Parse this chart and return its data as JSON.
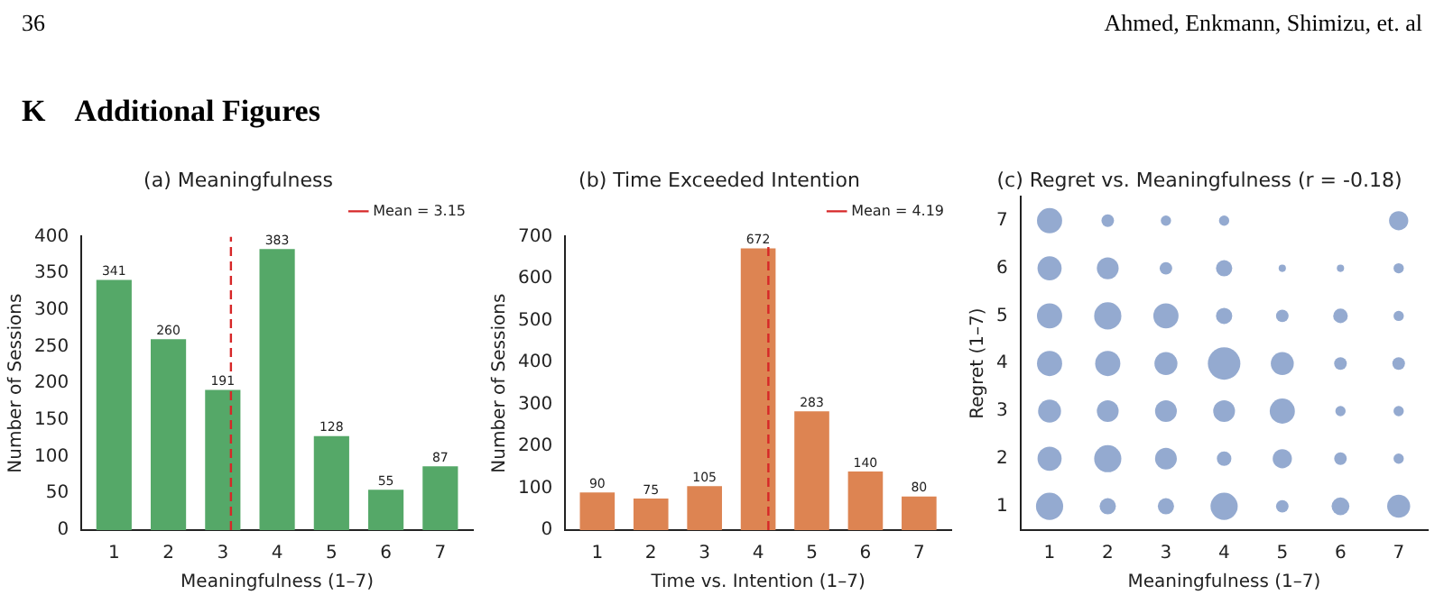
{
  "chart_data": [
    {
      "type": "bar",
      "title": "(a) Meaningfulness",
      "xlabel": "Meaningfulness (1–7)",
      "ylabel": "Number of Sessions",
      "x": [
        1,
        2,
        3,
        4,
        5,
        6,
        7
      ],
      "values": [
        341,
        260,
        191,
        383,
        128,
        55,
        87
      ],
      "color": "#55a868",
      "xlim": [
        0.4,
        7.6
      ],
      "xticks": [
        1,
        2,
        3,
        4,
        5,
        6,
        7
      ],
      "ylim": [
        0,
        400
      ],
      "yticks": [
        0,
        50,
        100,
        150,
        200,
        250,
        300,
        350,
        400
      ],
      "data_labels": true,
      "ref_lines": [
        {
          "axis": "x",
          "value": 3.15,
          "label": "Mean = 3.15",
          "color": "#d62728",
          "line_style": "dashed"
        }
      ],
      "legend": "top right",
      "grid": false,
      "annotations": [
        "36",
        "Ahmed, Enkmann, Shimizu, et. al",
        "K    Additional Figures"
      ]
    },
    {
      "type": "bar",
      "title": "(b) Time Exceeded Intention",
      "xlabel": "Time vs. Intention (1–7)",
      "ylabel": "Number of Sessions",
      "x": [
        1,
        2,
        3,
        4,
        5,
        6,
        7
      ],
      "values": [
        90,
        75,
        105,
        672,
        283,
        140,
        80
      ],
      "color": "#dd8452",
      "xlim": [
        0.4,
        7.6
      ],
      "xticks": [
        1,
        2,
        3,
        4,
        5,
        6,
        7
      ],
      "ylim": [
        0,
        700
      ],
      "yticks": [
        0,
        100,
        200,
        300,
        400,
        500,
        600,
        700
      ],
      "data_labels": true,
      "ref_lines": [
        {
          "axis": "x",
          "value": 4.19,
          "label": "Mean = 4.19",
          "color": "#d62728",
          "line_style": "dashed"
        }
      ],
      "legend": "top right",
      "grid": false
    },
    {
      "type": "bubble",
      "title": "(c) Regret vs. Meaningfulness (r = -0.18)",
      "xlabel": "Meaningfulness (1–7)",
      "ylabel": "Regret (1–7)",
      "color": "#4c72b0",
      "xlim": [
        0.5,
        7.5
      ],
      "xticks": [
        1,
        2,
        3,
        4,
        5,
        6,
        7
      ],
      "ylim": [
        0.5,
        7.5
      ],
      "yticks": [
        1,
        2,
        3,
        4,
        5,
        6,
        7
      ],
      "grid": false,
      "x": [
        1,
        2,
        3,
        4,
        7,
        1,
        2,
        3,
        4,
        5,
        6,
        7,
        1,
        2,
        3,
        4,
        5,
        6,
        7,
        1,
        2,
        3,
        4,
        5,
        6,
        7,
        1,
        2,
        3,
        4,
        5,
        6,
        7,
        1,
        2,
        3,
        4,
        5,
        6,
        7,
        1,
        2,
        3,
        4,
        5,
        6,
        7
      ],
      "values": [
        7,
        7,
        7,
        7,
        7,
        6,
        6,
        6,
        6,
        6,
        6,
        6,
        5,
        5,
        5,
        5,
        5,
        5,
        5,
        4,
        4,
        4,
        4,
        4,
        4,
        4,
        3,
        3,
        3,
        3,
        3,
        3,
        3,
        2,
        2,
        2,
        2,
        2,
        2,
        2,
        1,
        1,
        1,
        1,
        1,
        1,
        1
      ],
      "sizes": [
        0.6,
        0.15,
        0.1,
        0.1,
        0.35,
        0.55,
        0.45,
        0.15,
        0.25,
        0.05,
        0.05,
        0.1,
        0.6,
        0.7,
        0.6,
        0.25,
        0.15,
        0.2,
        0.1,
        0.6,
        0.6,
        0.5,
        1,
        0.5,
        0.15,
        0.15,
        0.5,
        0.45,
        0.45,
        0.45,
        0.6,
        0.1,
        0.1,
        0.55,
        0.7,
        0.45,
        0.2,
        0.35,
        0.15,
        0.1,
        0.7,
        0.25,
        0.25,
        0.7,
        0.15,
        0.3,
        0.5
      ]
    }
  ]
}
